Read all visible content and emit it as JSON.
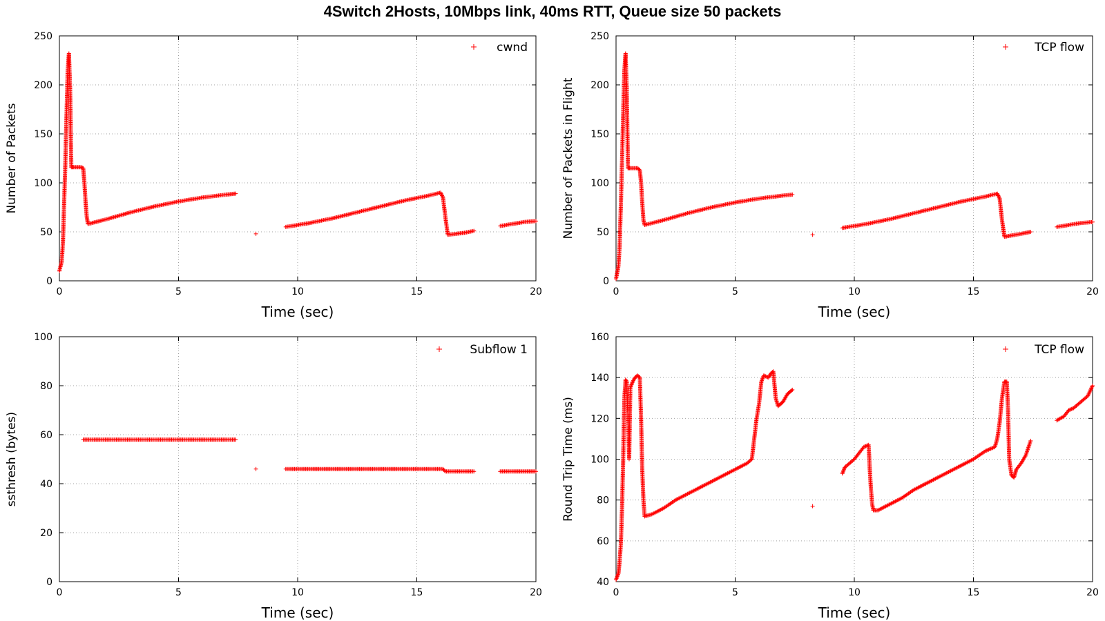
{
  "title": "4Switch 2Hosts, 10Mbps link, 40ms RTT, Queue size 50 packets",
  "colors": {
    "series": "#ff0000",
    "grid": "#a0a0a0",
    "axis": "#000000"
  },
  "chart_data": [
    {
      "type": "scatter",
      "xlabel": "Time (sec)",
      "ylabel": "Number of Packets",
      "xlim": [
        0,
        20
      ],
      "ylim": [
        0,
        250
      ],
      "xticks": [
        0,
        5,
        10,
        15,
        20
      ],
      "yticks": [
        0,
        50,
        100,
        150,
        200,
        250
      ],
      "grid": true,
      "legend_position": "top-right",
      "marker": "+",
      "series": [
        {
          "name": "cwnd",
          "segments": [
            [
              [
                0.0,
                10
              ],
              [
                0.1,
                20
              ],
              [
                0.15,
                40
              ],
              [
                0.2,
                80
              ],
              [
                0.25,
                120
              ],
              [
                0.3,
                170
              ],
              [
                0.35,
                215
              ],
              [
                0.4,
                232
              ],
              [
                0.45,
                195
              ],
              [
                0.5,
                116
              ],
              [
                0.6,
                116
              ],
              [
                0.9,
                116
              ],
              [
                1.0,
                115
              ],
              [
                1.05,
                100
              ],
              [
                1.1,
                80
              ],
              [
                1.15,
                65
              ],
              [
                1.2,
                58
              ],
              [
                2.0,
                63
              ],
              [
                3.0,
                70
              ],
              [
                4.0,
                76
              ],
              [
                5.0,
                81
              ],
              [
                6.0,
                85
              ],
              [
                7.0,
                88
              ],
              [
                7.4,
                89
              ]
            ],
            [
              [
                8.25,
                48
              ]
            ],
            [
              [
                9.5,
                55
              ],
              [
                10.5,
                59
              ],
              [
                11.5,
                64
              ],
              [
                12.5,
                70
              ],
              [
                13.5,
                76
              ],
              [
                14.5,
                82
              ],
              [
                15.5,
                87
              ],
              [
                16.0,
                90
              ],
              [
                16.1,
                85
              ],
              [
                16.2,
                65
              ],
              [
                16.3,
                47
              ],
              [
                17.0,
                49
              ],
              [
                17.4,
                51
              ]
            ],
            [
              [
                18.5,
                56
              ],
              [
                19.0,
                58
              ],
              [
                19.5,
                60
              ],
              [
                20.0,
                61
              ]
            ]
          ]
        }
      ]
    },
    {
      "type": "scatter",
      "xlabel": "Time (sec)",
      "ylabel": "Number of Packets in Flight",
      "xlim": [
        0,
        20
      ],
      "ylim": [
        0,
        250
      ],
      "xticks": [
        0,
        5,
        10,
        15,
        20
      ],
      "yticks": [
        0,
        50,
        100,
        150,
        200,
        250
      ],
      "grid": true,
      "legend_position": "top-right",
      "marker": "+",
      "series": [
        {
          "name": "TCP flow",
          "segments": [
            [
              [
                0.0,
                2
              ],
              [
                0.1,
                15
              ],
              [
                0.15,
                35
              ],
              [
                0.2,
                75
              ],
              [
                0.25,
                120
              ],
              [
                0.3,
                170
              ],
              [
                0.35,
                215
              ],
              [
                0.4,
                232
              ],
              [
                0.45,
                195
              ],
              [
                0.5,
                115
              ],
              [
                0.6,
                115
              ],
              [
                0.9,
                115
              ],
              [
                1.0,
                113
              ],
              [
                1.05,
                100
              ],
              [
                1.1,
                80
              ],
              [
                1.15,
                62
              ],
              [
                1.2,
                57
              ],
              [
                2.0,
                62
              ],
              [
                3.0,
                69
              ],
              [
                4.0,
                75
              ],
              [
                5.0,
                80
              ],
              [
                6.0,
                84
              ],
              [
                7.0,
                87
              ],
              [
                7.4,
                88
              ]
            ],
            [
              [
                8.25,
                47
              ]
            ],
            [
              [
                9.5,
                54
              ],
              [
                10.5,
                58
              ],
              [
                11.5,
                63
              ],
              [
                12.5,
                69
              ],
              [
                13.5,
                75
              ],
              [
                14.5,
                81
              ],
              [
                15.5,
                86
              ],
              [
                16.0,
                89
              ],
              [
                16.1,
                84
              ],
              [
                16.2,
                62
              ],
              [
                16.3,
                45
              ],
              [
                17.0,
                48
              ],
              [
                17.4,
                50
              ]
            ],
            [
              [
                18.5,
                55
              ],
              [
                19.0,
                57
              ],
              [
                19.5,
                59
              ],
              [
                20.0,
                60
              ]
            ]
          ]
        }
      ]
    },
    {
      "type": "scatter",
      "xlabel": "Time (sec)",
      "ylabel": "ssthresh (bytes)",
      "xlim": [
        0,
        20
      ],
      "ylim": [
        0,
        100
      ],
      "xticks": [
        0,
        5,
        10,
        15,
        20
      ],
      "yticks": [
        0,
        20,
        40,
        60,
        80,
        100
      ],
      "grid": true,
      "legend_position": "top-right",
      "marker": "+",
      "series": [
        {
          "name": "Subflow 1",
          "segments": [
            [
              [
                1.0,
                58
              ],
              [
                7.4,
                58
              ]
            ],
            [
              [
                8.25,
                46
              ]
            ],
            [
              [
                9.5,
                46
              ],
              [
                16.1,
                46
              ],
              [
                16.2,
                45
              ],
              [
                17.4,
                45
              ]
            ],
            [
              [
                18.5,
                45
              ],
              [
                20.0,
                45
              ]
            ]
          ]
        }
      ]
    },
    {
      "type": "scatter",
      "xlabel": "Time (sec)",
      "ylabel": "Round Trip Time (ms)",
      "xlim": [
        0,
        20
      ],
      "ylim": [
        40,
        160
      ],
      "xticks": [
        0,
        5,
        10,
        15,
        20
      ],
      "yticks": [
        40,
        60,
        80,
        100,
        120,
        140,
        160
      ],
      "grid": true,
      "legend_position": "top-right",
      "marker": "+",
      "series": [
        {
          "name": "TCP flow",
          "segments": [
            [
              [
                0.0,
                41
              ],
              [
                0.1,
                44
              ],
              [
                0.15,
                50
              ],
              [
                0.2,
                58
              ],
              [
                0.25,
                75
              ],
              [
                0.3,
                100
              ],
              [
                0.35,
                130
              ],
              [
                0.4,
                139
              ],
              [
                0.45,
                138
              ],
              [
                0.5,
                120
              ],
              [
                0.55,
                100
              ],
              [
                0.6,
                135
              ],
              [
                0.7,
                138
              ],
              [
                0.8,
                140
              ],
              [
                0.9,
                141
              ],
              [
                1.0,
                140
              ],
              [
                1.05,
                120
              ],
              [
                1.1,
                95
              ],
              [
                1.15,
                80
              ],
              [
                1.2,
                72
              ],
              [
                1.5,
                73
              ],
              [
                2.0,
                76
              ],
              [
                2.5,
                80
              ],
              [
                3.0,
                83
              ],
              [
                3.5,
                86
              ],
              [
                4.0,
                89
              ],
              [
                4.5,
                92
              ],
              [
                5.0,
                95
              ],
              [
                5.5,
                98
              ],
              [
                5.7,
                100
              ],
              [
                5.8,
                110
              ],
              [
                5.9,
                120
              ],
              [
                6.0,
                127
              ],
              [
                6.1,
                138
              ],
              [
                6.2,
                141
              ],
              [
                6.4,
                140
              ],
              [
                6.5,
                142
              ],
              [
                6.6,
                143
              ],
              [
                6.7,
                130
              ],
              [
                6.8,
                126
              ],
              [
                6.9,
                127
              ],
              [
                7.0,
                128
              ],
              [
                7.1,
                130
              ],
              [
                7.2,
                132
              ],
              [
                7.3,
                133
              ],
              [
                7.4,
                134
              ]
            ],
            [
              [
                8.25,
                77
              ]
            ],
            [
              [
                9.5,
                93
              ],
              [
                9.6,
                96
              ],
              [
                9.8,
                98
              ],
              [
                10.0,
                100
              ],
              [
                10.2,
                103
              ],
              [
                10.4,
                106
              ],
              [
                10.6,
                107
              ],
              [
                10.65,
                95
              ],
              [
                10.7,
                85
              ],
              [
                10.75,
                78
              ],
              [
                10.8,
                75
              ],
              [
                11.0,
                75
              ],
              [
                11.5,
                78
              ],
              [
                12.0,
                81
              ],
              [
                12.5,
                85
              ],
              [
                13.0,
                88
              ],
              [
                13.5,
                91
              ],
              [
                14.0,
                94
              ],
              [
                14.5,
                97
              ],
              [
                15.0,
                100
              ],
              [
                15.5,
                104
              ],
              [
                15.9,
                106
              ],
              [
                16.0,
                110
              ],
              [
                16.1,
                118
              ],
              [
                16.2,
                130
              ],
              [
                16.3,
                138
              ],
              [
                16.4,
                138
              ],
              [
                16.45,
                125
              ],
              [
                16.5,
                100
              ],
              [
                16.6,
                92
              ],
              [
                16.7,
                91
              ],
              [
                16.8,
                95
              ],
              [
                17.0,
                98
              ],
              [
                17.2,
                102
              ],
              [
                17.4,
                109
              ]
            ],
            [
              [
                18.5,
                119
              ],
              [
                18.8,
                121
              ],
              [
                19.0,
                124
              ],
              [
                19.2,
                125
              ],
              [
                19.4,
                127
              ],
              [
                19.6,
                129
              ],
              [
                19.8,
                131
              ],
              [
                20.0,
                136
              ]
            ]
          ]
        }
      ]
    }
  ]
}
